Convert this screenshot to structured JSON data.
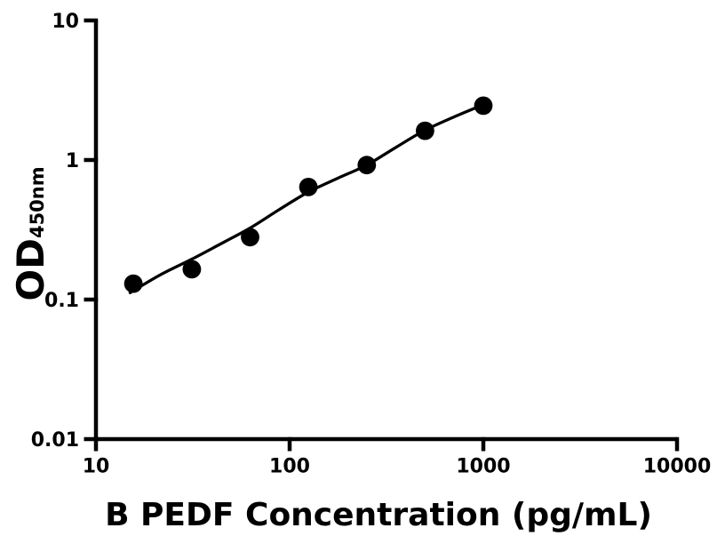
{
  "figure": {
    "background": "#ffffff",
    "ink": "#000000"
  },
  "chart_data": {
    "type": "scatter",
    "title": "",
    "xlabel": "B PEDF Concentration (pg/mL)",
    "ylabel": "OD",
    "ylabel_subscript": "450nm",
    "x_scale": "log",
    "y_scale": "log",
    "xlim": [
      10,
      10000
    ],
    "ylim": [
      0.01,
      10
    ],
    "x_ticks": [
      10,
      100,
      1000,
      10000
    ],
    "x_tick_labels": [
      "10",
      "100",
      "1000",
      "10000"
    ],
    "y_ticks": [
      10,
      1,
      0.1,
      0.01
    ],
    "y_tick_labels": [
      "10",
      "1",
      "0.1",
      "0.01"
    ],
    "grid": false,
    "legend_position": "none",
    "series": [
      {
        "name": "standard-points",
        "marker": "circle",
        "color": "#000000",
        "x": [
          15.6,
          31.25,
          62.5,
          125,
          250,
          500,
          1000
        ],
        "y": [
          0.13,
          0.165,
          0.28,
          0.64,
          0.92,
          1.62,
          2.45
        ]
      }
    ],
    "fit_curve": {
      "name": "standard-curve-fit",
      "color": "#000000",
      "points": [
        [
          15.0,
          0.112
        ],
        [
          21.4,
          0.15
        ],
        [
          31.3,
          0.195
        ],
        [
          43.9,
          0.25
        ],
        [
          62.4,
          0.325
        ],
        [
          88.0,
          0.44
        ],
        [
          125.0,
          0.59
        ],
        [
          177.0,
          0.74
        ],
        [
          250.0,
          0.92
        ],
        [
          353.0,
          1.23
        ],
        [
          498.0,
          1.63
        ],
        [
          703.0,
          2.03
        ],
        [
          1000.0,
          2.49
        ]
      ]
    }
  }
}
